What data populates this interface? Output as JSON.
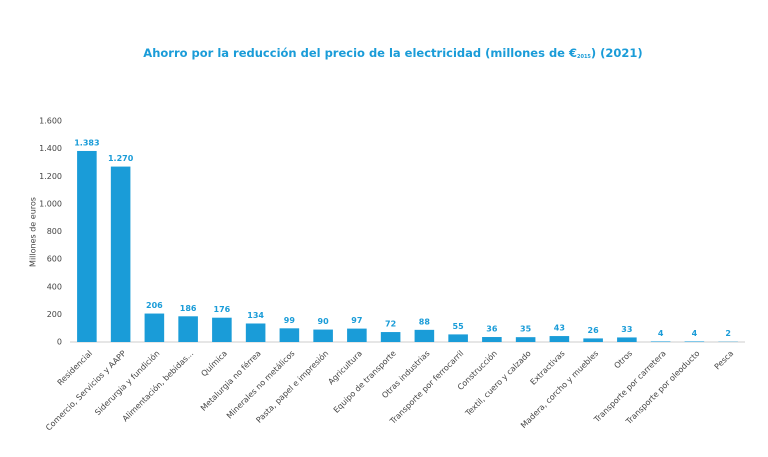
{
  "chart_data": {
    "type": "bar",
    "title_parts": [
      "Ahorro por la reducción del precio de la electricidad (millones de €",
      "2015",
      ") (2021)"
    ],
    "y_label": "Millones de euros",
    "categories": [
      "Residencial",
      "Comercio, Servicios y AAPP",
      "Siderurgia y fundición",
      "Alimentación, bebidas...",
      "Química",
      "Metalurgia no férrea",
      "Minerales no metálicos",
      "Pasta, papel e impresión",
      "Agricultura",
      "Equipo de transporte",
      "Otras industrias",
      "Transporte por ferrocarril",
      "Construcción",
      "Textil, cuero y calzado",
      "Extractivas",
      "Madera, corcho y muebles",
      "Otros",
      "Transporte por carretera",
      "Transporte por oleoducto",
      "Pesca"
    ],
    "values": [
      1383,
      1270,
      206,
      186,
      176,
      134,
      99,
      90,
      97,
      72,
      88,
      55,
      36,
      35,
      43,
      26,
      33,
      4,
      4,
      2
    ],
    "value_labels": [
      "1.383",
      "1.270",
      "206",
      "186",
      "176",
      "134",
      "99",
      "90",
      "97",
      "72",
      "88",
      "55",
      "36",
      "35",
      "43",
      "26",
      "33",
      "4",
      "4",
      "2"
    ],
    "color": "#1a9cd8",
    "ylim": [
      0,
      1600
    ],
    "yticks": [
      0,
      200,
      400,
      600,
      800,
      {
        "value": 1000,
        "label": "1.000"
      },
      {
        "value": 1200,
        "label": "1.200"
      },
      {
        "value": 1400,
        "label": "1.400"
      },
      {
        "value": 1600,
        "label": "1.600"
      }
    ],
    "grid": false
  }
}
